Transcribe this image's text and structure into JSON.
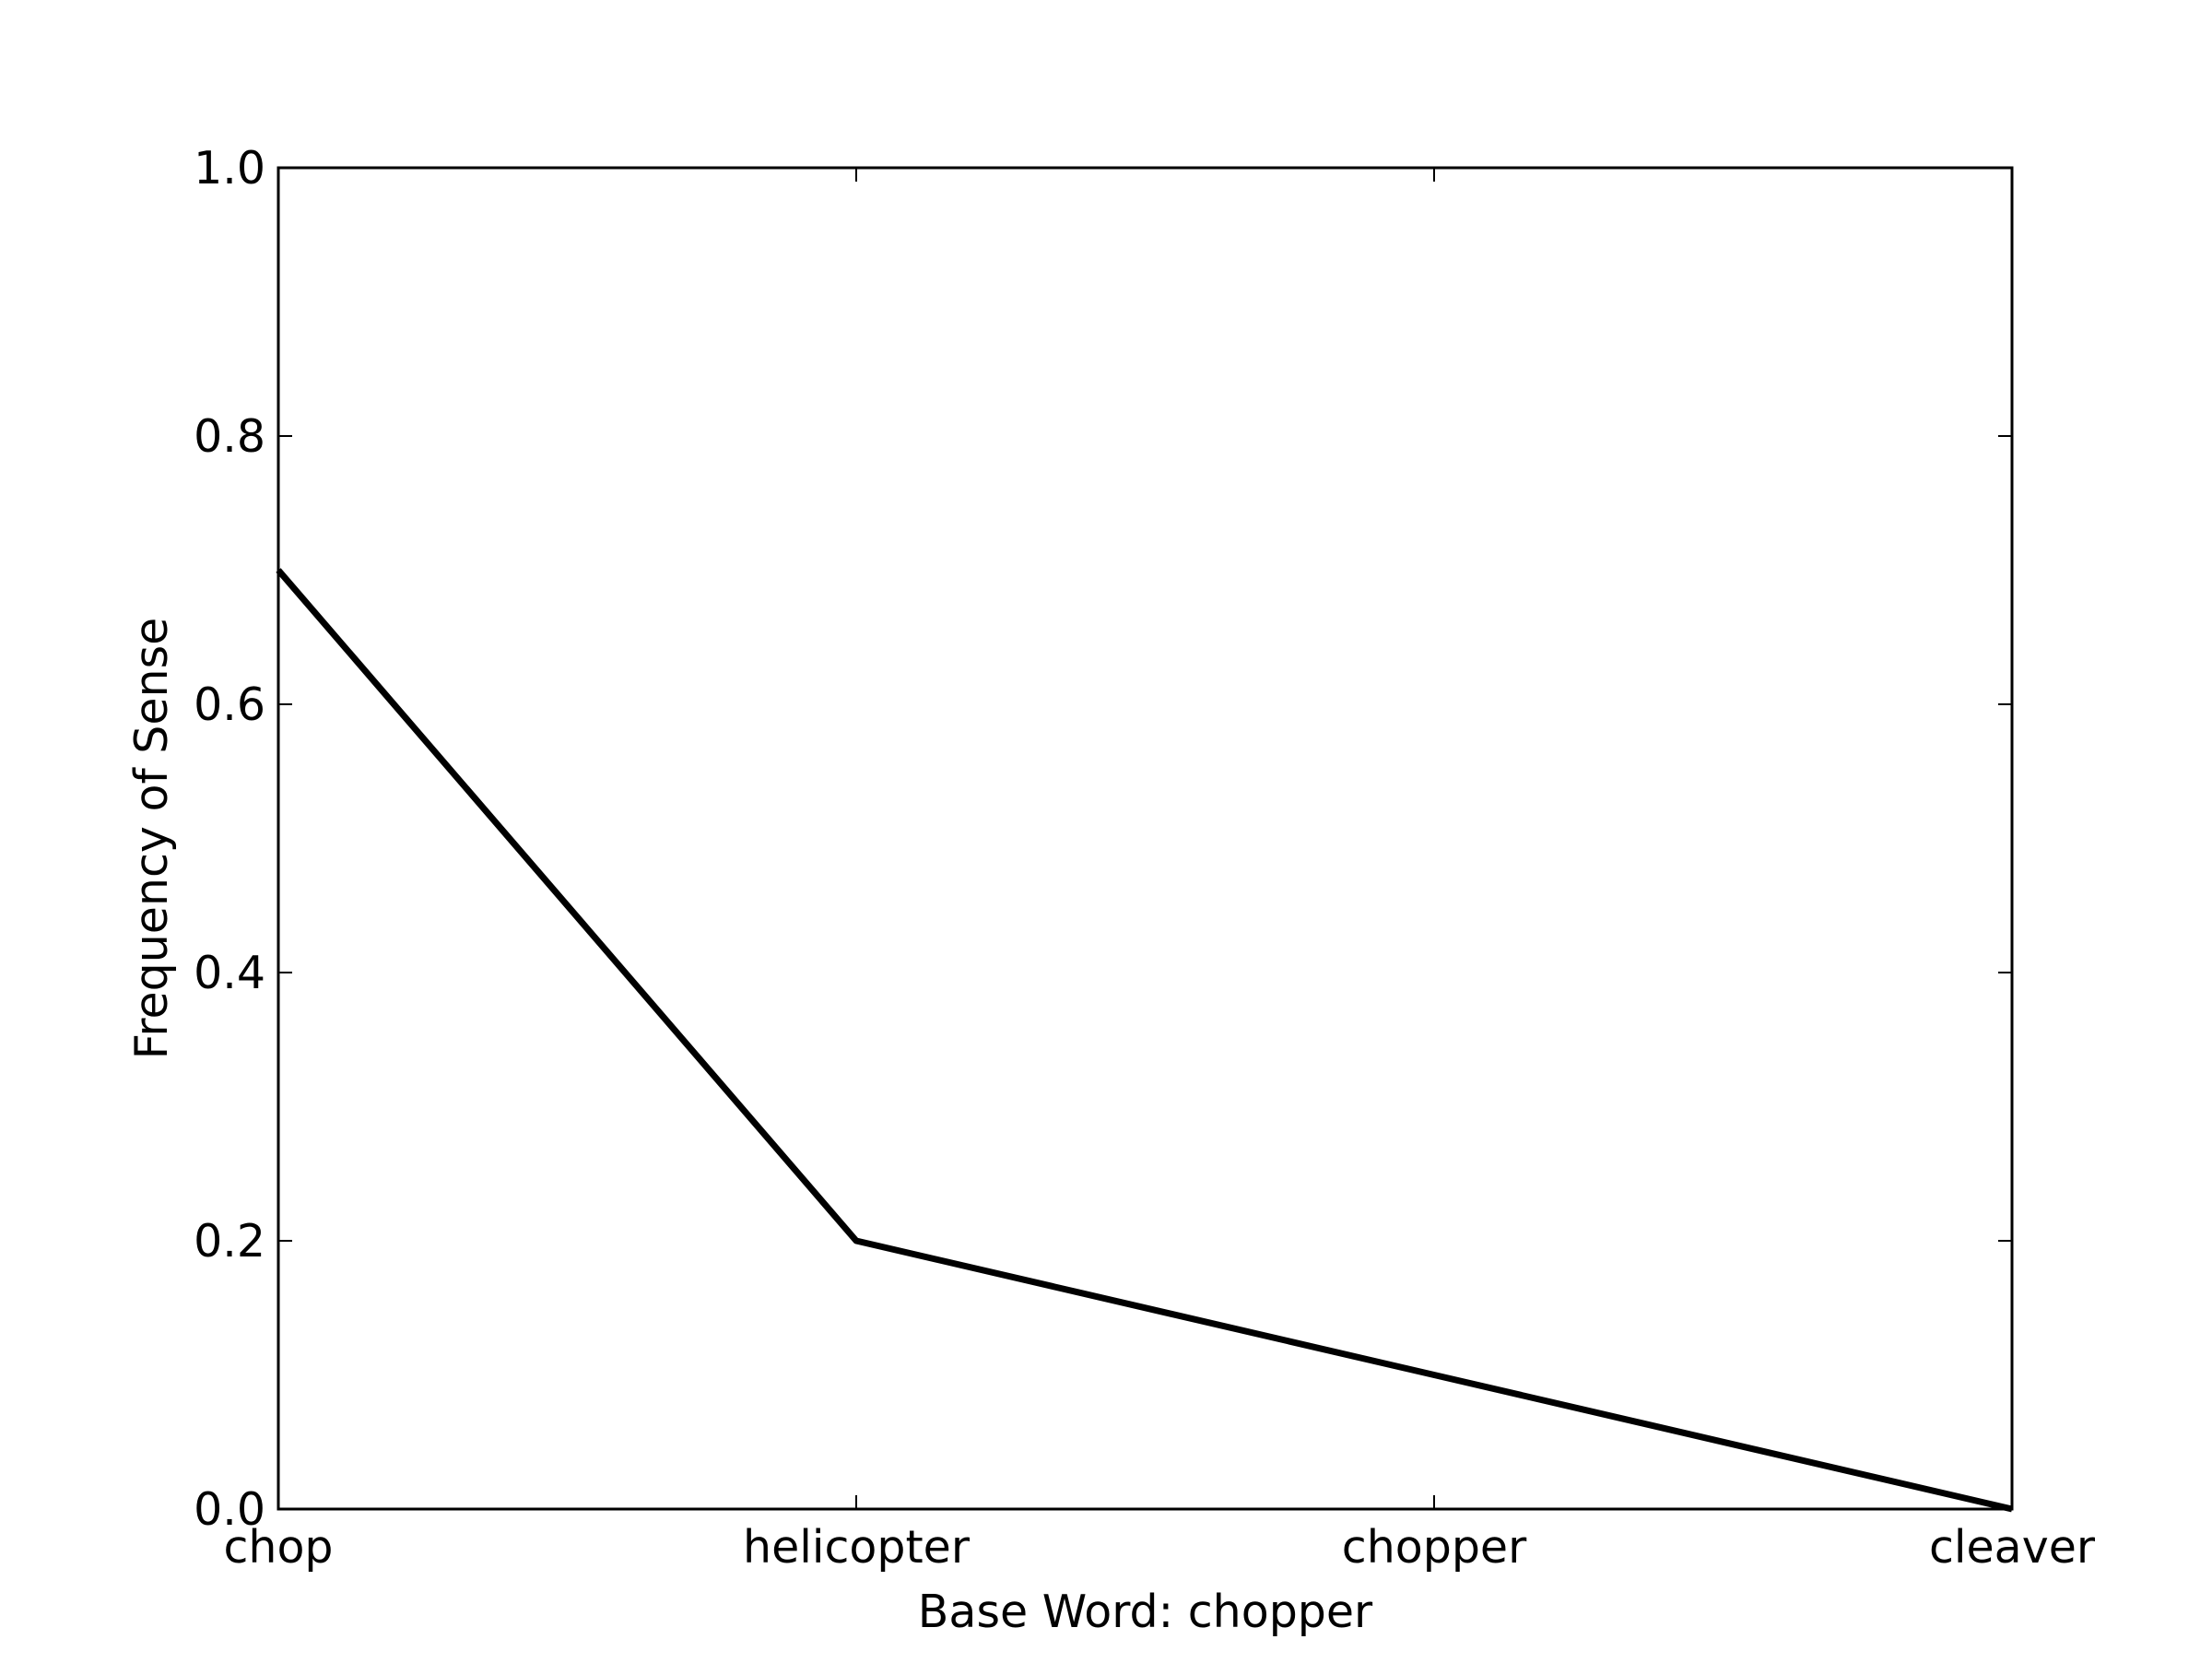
{
  "chart_data": {
    "type": "line",
    "title": "",
    "xlabel": "Base Word: chopper",
    "ylabel": "Frequency of Sense",
    "categories": [
      "chop",
      "helicopter",
      "chopper",
      "cleaver"
    ],
    "series": [
      {
        "values": [
          0.7,
          0.2,
          0.1,
          0.0
        ]
      }
    ],
    "ylim": [
      0.0,
      1.0
    ],
    "yticks": [
      "0.0",
      "0.2",
      "0.4",
      "0.6",
      "0.8",
      "1.0"
    ],
    "grid": false,
    "line_color": "#000000"
  }
}
